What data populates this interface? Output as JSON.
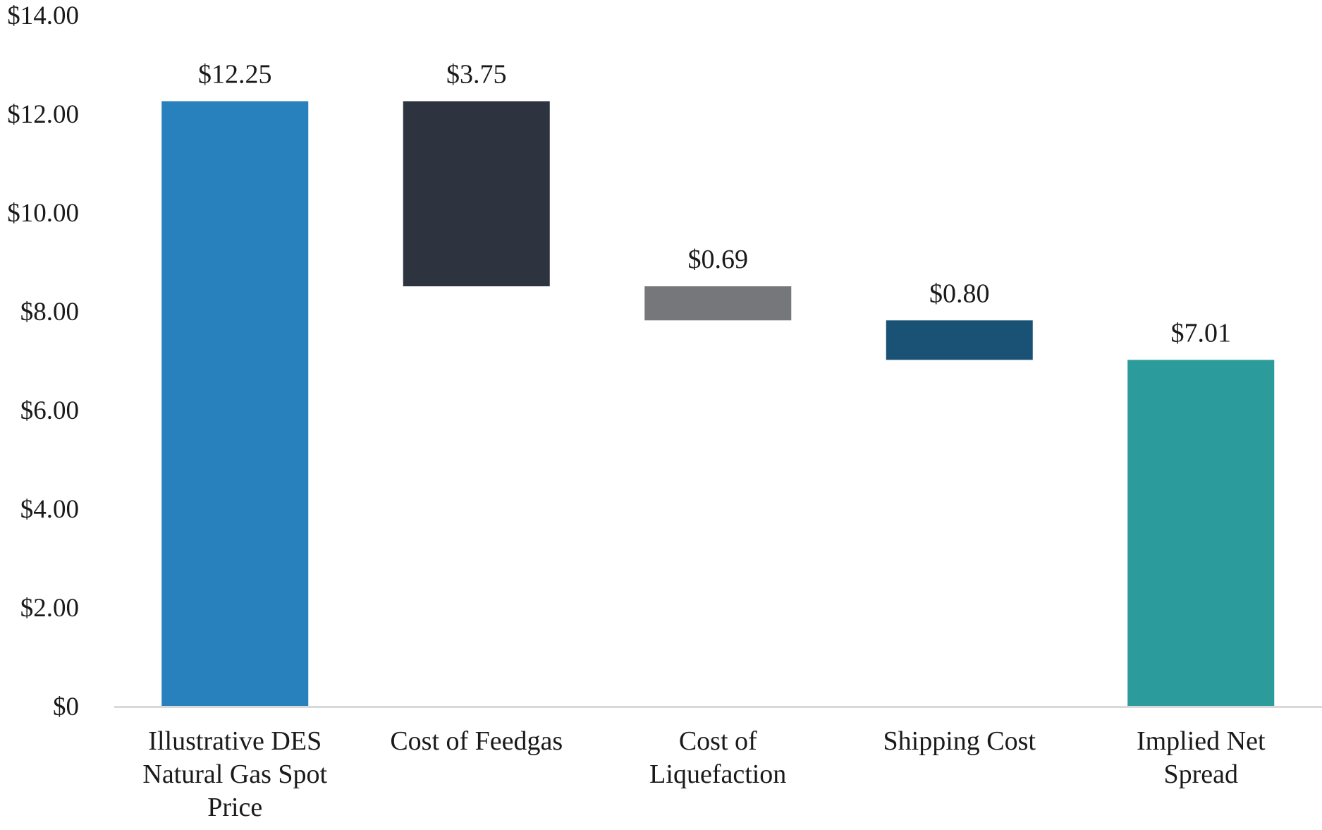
{
  "chart_data": {
    "type": "bar",
    "subtype": "waterfall",
    "title": "",
    "xlabel": "",
    "ylabel": "",
    "ylim": [
      0,
      14
    ],
    "yticks": [
      "$0",
      "$2.00",
      "$4.00",
      "$6.00",
      "$8.00",
      "$10.00",
      "$12.00",
      "$14.00"
    ],
    "ytick_values": [
      0,
      2,
      4,
      6,
      8,
      10,
      12,
      14
    ],
    "grid": false,
    "categories": [
      {
        "id": "spot",
        "lines": [
          "Illustrative DES",
          "Natural Gas Spot",
          "Price"
        ]
      },
      {
        "id": "feedgas",
        "lines": [
          "Cost of Feedgas"
        ]
      },
      {
        "id": "liquefaction",
        "lines": [
          "Cost of",
          "Liquefaction"
        ]
      },
      {
        "id": "shipping",
        "lines": [
          "Shipping Cost"
        ]
      },
      {
        "id": "spread",
        "lines": [
          "Implied Net",
          "Spread"
        ]
      }
    ],
    "bars": [
      {
        "kind": "total",
        "base": 0,
        "value": 12.25,
        "label": "$12.25",
        "color": "#2880bd"
      },
      {
        "kind": "decrease",
        "base": 8.5,
        "value": 3.75,
        "label": "$3.75",
        "color": "#2d3440"
      },
      {
        "kind": "decrease",
        "base": 7.81,
        "value": 0.69,
        "label": "$0.69",
        "color": "#76777b"
      },
      {
        "kind": "decrease",
        "base": 7.01,
        "value": 0.8,
        "label": "$0.80",
        "color": "#1a5276"
      },
      {
        "kind": "total",
        "base": 0,
        "value": 7.01,
        "label": "$7.01",
        "color": "#2c9b9b"
      }
    ],
    "axis_color": "#d9d9d9"
  }
}
